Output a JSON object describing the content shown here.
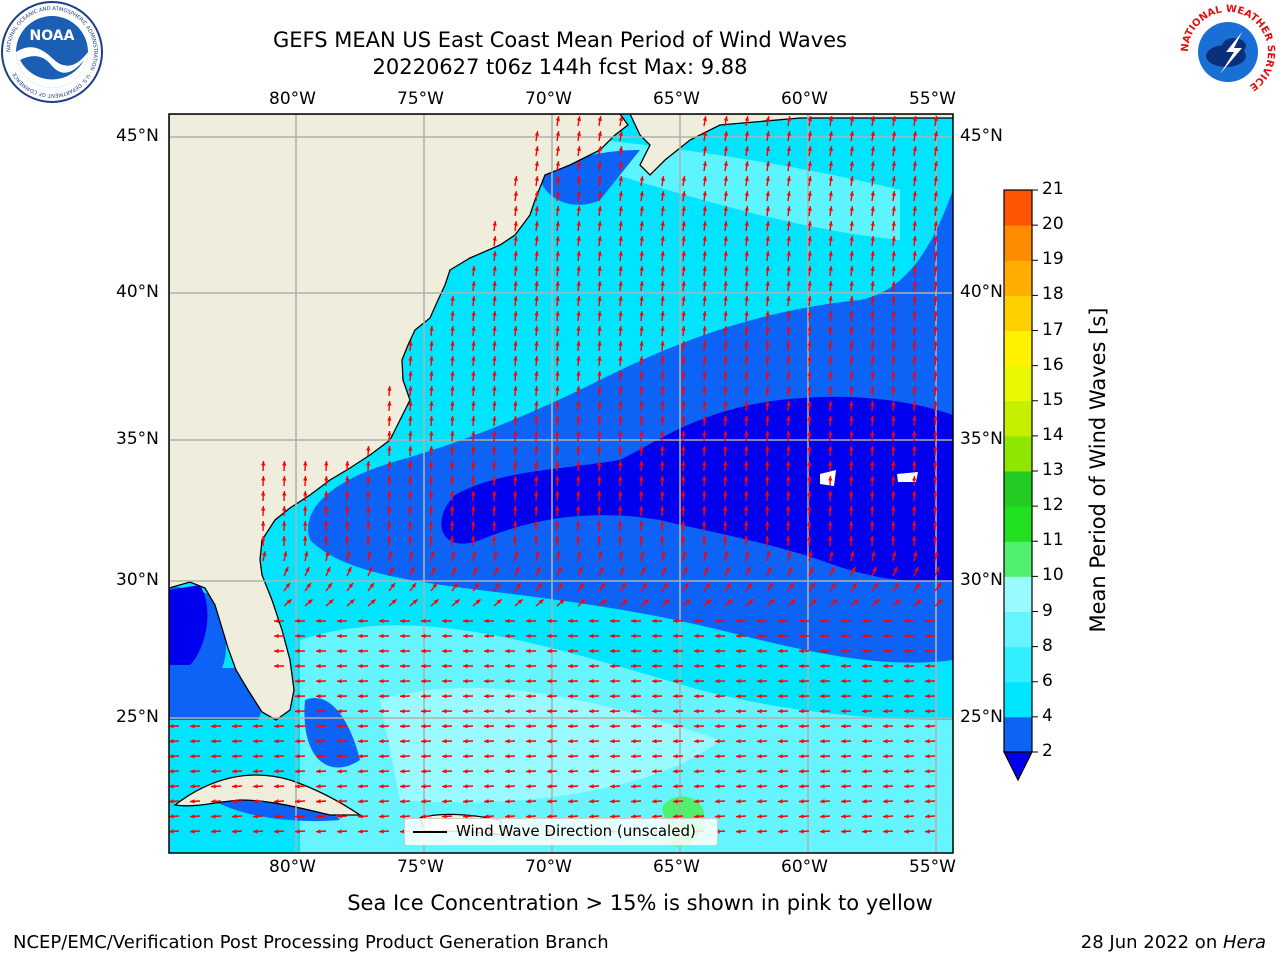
{
  "title": {
    "line1": "GEFS MEAN US East Coast Mean Period of Wind Waves",
    "line2": "20220627 t06z 144h fcst   Max: 9.88"
  },
  "logos": {
    "left": "noaa-logo",
    "left_text": "NOAA",
    "left_ring": "NATIONAL OCEANIC AND ATMOSPHERIC ADMINISTRATION · U.S. DEPARTMENT OF COMMERCE",
    "right": "nws-logo",
    "right_ring": "NATIONAL WEATHER SERVICE"
  },
  "axes": {
    "lon_labels": [
      "80°W",
      "75°W",
      "70°W",
      "65°W",
      "60°W",
      "55°W"
    ],
    "lat_labels": [
      "45°N",
      "40°N",
      "35°N",
      "30°N",
      "25°N"
    ]
  },
  "legend": {
    "label": "Wind Wave Direction (unscaled)"
  },
  "colorbar": {
    "title": "Mean Period of Wind Waves [s]",
    "ticks": [
      "2",
      "4",
      "6",
      "8",
      "9",
      "10",
      "11",
      "12",
      "13",
      "14",
      "15",
      "16",
      "17",
      "18",
      "19",
      "20",
      "21"
    ],
    "colors": [
      "#0c63f5",
      "#00e5ff",
      "#33eeff",
      "#66f5ff",
      "#99fbff",
      "#4ef06e",
      "#20e020",
      "#22cc22",
      "#8fe600",
      "#c4f000",
      "#e8f800",
      "#fff200",
      "#ffd000",
      "#ffae00",
      "#ff8c00",
      "#ff5500",
      "#ff2a00",
      "#ff0000"
    ],
    "extend_color": "#0000ee"
  },
  "colors": {
    "land": "#efeedd",
    "level_2_4": "#0000ee",
    "level_4_6": "#0c63f5",
    "level_6_8": "#00e5ff",
    "level_8_9": "#66f5ff",
    "level_9_10": "#99fbff",
    "level_10_11": "#4ef06e",
    "arrow": "#ff0000",
    "grid": "#b0b0b0"
  },
  "footer": {
    "ice_note": "Sea Ice Concentration > 15% is shown in pink to yellow",
    "left": "NCEP/EMC/Verification Post Processing Product Generation Branch",
    "date": "28 Jun 2022 on ",
    "machine": "Hera"
  }
}
